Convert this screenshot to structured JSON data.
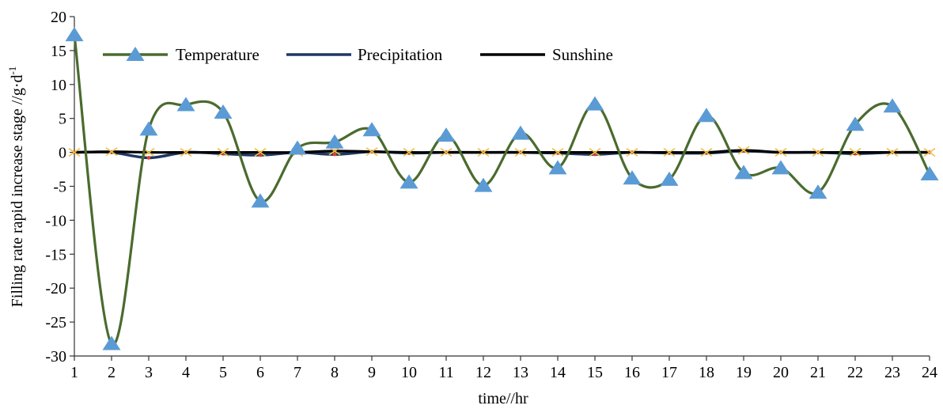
{
  "chart_data": {
    "type": "line",
    "xlabel": "time//hr",
    "ylabel": "Filling rate rapid increase stage //g·d",
    "ylabel_superscript": "-1",
    "x": [
      1,
      2,
      3,
      4,
      5,
      6,
      7,
      8,
      9,
      10,
      11,
      12,
      13,
      14,
      15,
      16,
      17,
      18,
      19,
      20,
      21,
      22,
      23,
      24
    ],
    "ylim": [
      -30,
      20
    ],
    "yticks": [
      20,
      15,
      10,
      5,
      0,
      -5,
      -10,
      -15,
      -20,
      -25,
      -30
    ],
    "legend_placement": "top-left",
    "grid": false,
    "series": [
      {
        "name": "Temperature",
        "color": "#4a6b2e",
        "marker": "triangle",
        "marker_color": "#5b9bd5",
        "smooth": true,
        "values": [
          17.3,
          -28.2,
          3.4,
          7.0,
          5.9,
          -7.2,
          0.6,
          1.5,
          3.3,
          -4.4,
          2.5,
          -4.9,
          2.8,
          -2.3,
          7.1,
          -3.8,
          -4.0,
          5.4,
          -3.0,
          -2.3,
          -5.9,
          4.1,
          6.8,
          -3.2
        ]
      },
      {
        "name": "Precipitation",
        "color": "#1f3864",
        "marker": "dot",
        "marker_color": "#e03c31",
        "smooth": true,
        "values": [
          0.0,
          0.0,
          -0.8,
          0.0,
          -0.2,
          -0.4,
          0.0,
          -0.3,
          0.1,
          -0.1,
          0.0,
          0.0,
          0.0,
          -0.1,
          -0.3,
          0.0,
          -0.1,
          -0.1,
          0.2,
          0.0,
          0.0,
          -0.2,
          0.0,
          0.0
        ]
      },
      {
        "name": "Sunshine",
        "color": "#000000",
        "marker": "x",
        "marker_color": "#f0c14b",
        "smooth": true,
        "values": [
          0.0,
          0.1,
          0.0,
          0.0,
          0.0,
          0.0,
          0.0,
          0.2,
          0.1,
          0.0,
          0.0,
          0.0,
          0.0,
          0.0,
          0.0,
          0.0,
          0.0,
          0.0,
          0.3,
          0.0,
          0.0,
          0.0,
          0.0,
          0.0
        ]
      }
    ]
  }
}
